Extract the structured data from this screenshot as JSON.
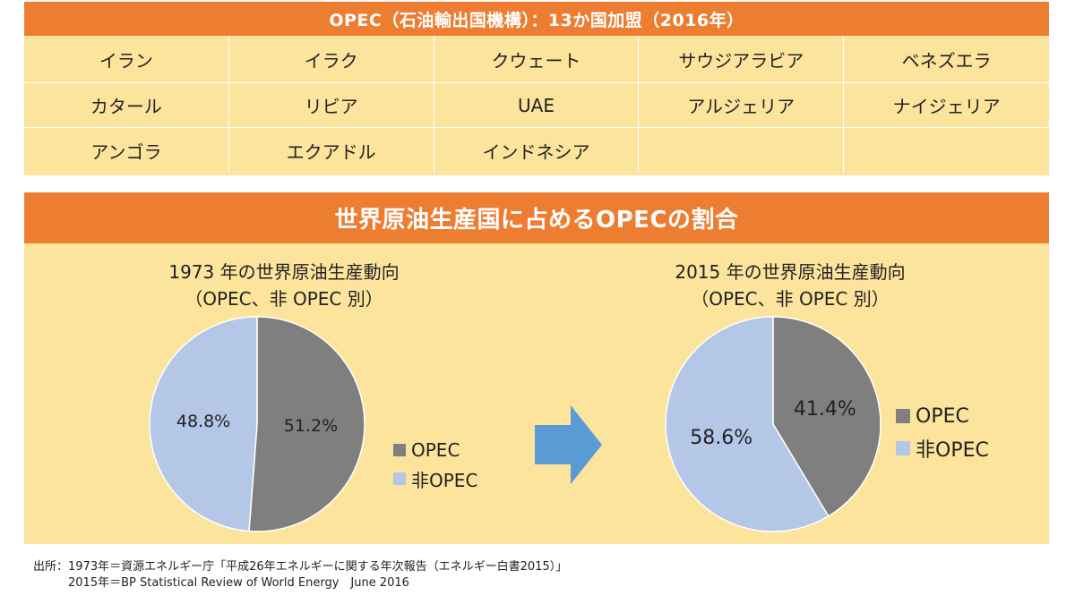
{
  "members": {
    "title": "OPEC（石油輸出国機構）：13か国加盟（2016年）",
    "countries": [
      "イラン",
      "イラク",
      "クウェート",
      "サウジアラビア",
      "ベネズエラ",
      "カタール",
      "リビア",
      "UAE",
      "アルジェリア",
      "ナイジェリア",
      "アンゴラ",
      "エクアドル",
      "インドネシア",
      "",
      ""
    ]
  },
  "panel_title": "世界原油生産国に占めるOPECの割合",
  "colors": {
    "opec": "#7f7f7f",
    "non_opec": "#b4c7e7",
    "header": "#ed7d31",
    "background": "#fde49c",
    "arrow": "#5b9bd5"
  },
  "chart_data": [
    {
      "type": "pie",
      "title_line1": "1973 年の世界原油生産動向",
      "title_line2": "（OPEC、非 OPEC 別）",
      "categories": [
        "OPEC",
        "非OPEC"
      ],
      "values": [
        51.2,
        48.8
      ],
      "labels": [
        "51.2%",
        "48.8%"
      ],
      "legend": "right"
    },
    {
      "type": "pie",
      "title_line1": "2015 年の世界原油生産動向",
      "title_line2": "（OPEC、非 OPEC 別）",
      "categories": [
        "OPEC",
        "非OPEC"
      ],
      "values": [
        41.4,
        58.6
      ],
      "labels": [
        "41.4%",
        "58.6%"
      ],
      "legend": "right"
    }
  ],
  "source": {
    "line1": "出所：1973年＝資源エネルギー庁「平成26年エネルギーに関する年次報告（エネルギー白書2015）」",
    "line2": "　　　2015年＝BP Statistical Review of World Energy　June 2016"
  }
}
